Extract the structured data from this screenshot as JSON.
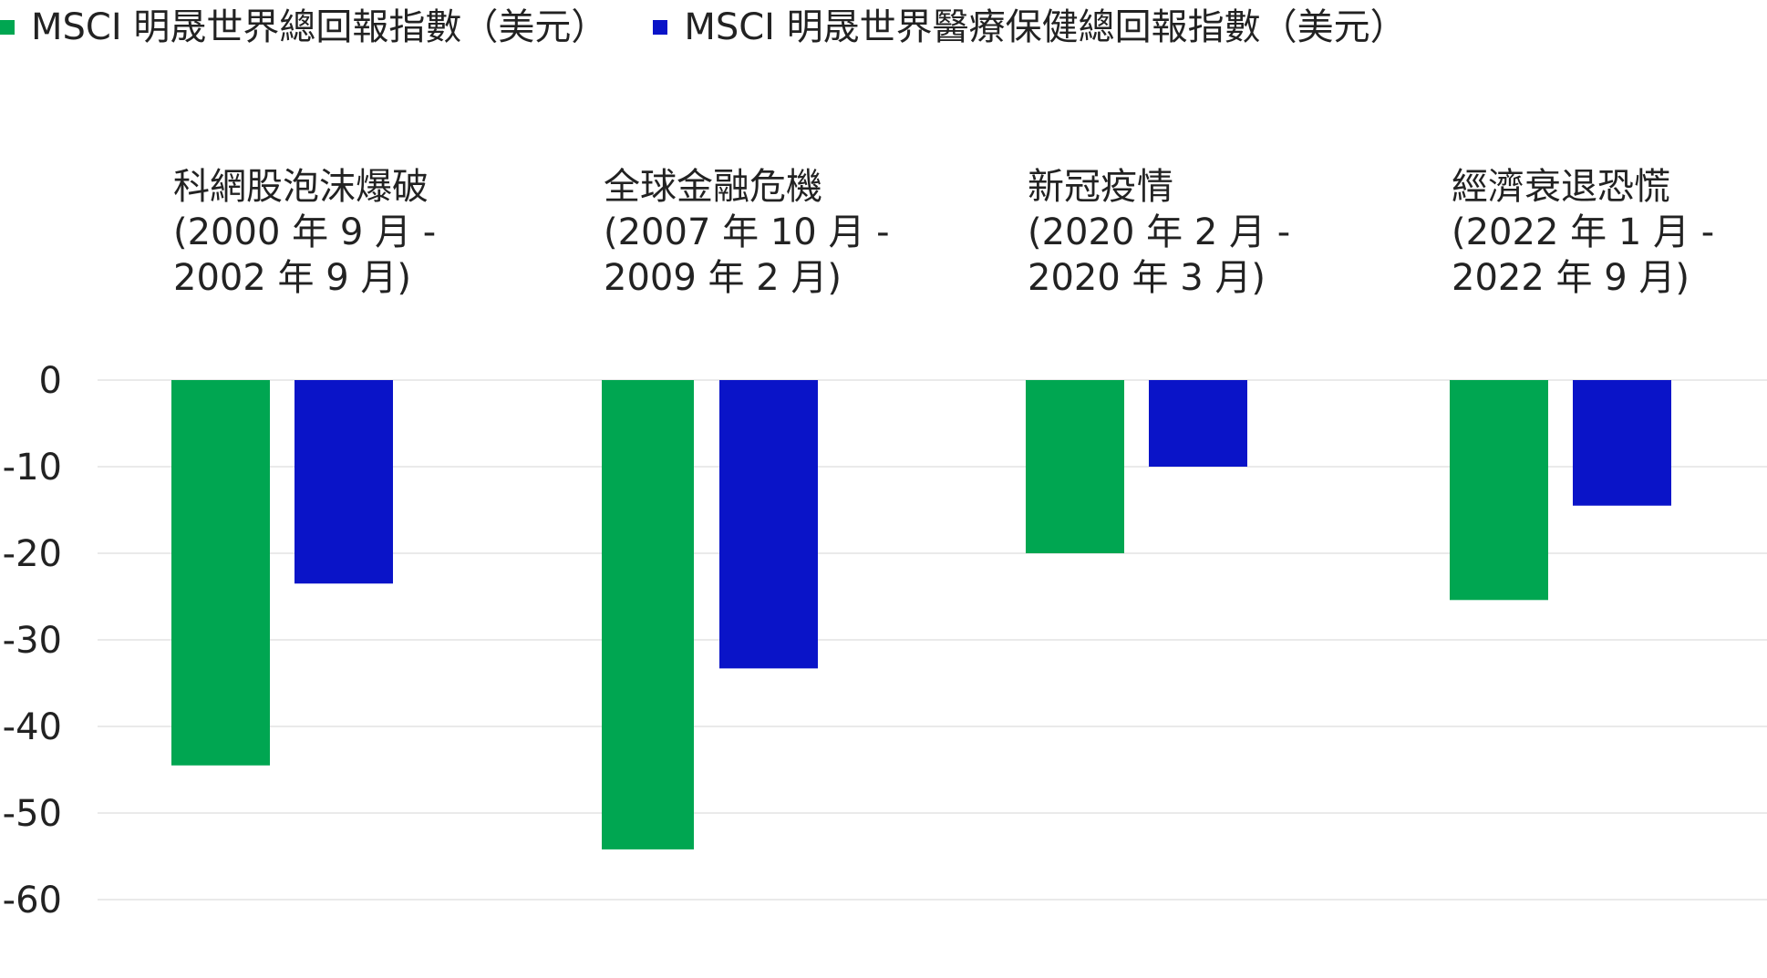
{
  "legend": [
    {
      "label": "MSCI 明晟世界總回報指數（美元）",
      "color": "#00a651"
    },
    {
      "label": "MSCI 明晟世界醫療保健總回報指數（美元）",
      "color": "#0a14c8"
    }
  ],
  "chart_data": {
    "type": "bar",
    "categories": [
      [
        "科網股泡沫爆破",
        "(2000 年 9 月 -",
        "2002 年 9 月)"
      ],
      [
        "全球金融危機",
        "(2007 年 10 月 -",
        "2009 年 2 月)"
      ],
      [
        "新冠疫情",
        "(2020 年 2 月 -",
        "2020 年 3 月)"
      ],
      [
        "經濟衰退恐慌",
        "(2022 年 1 月 -",
        "2022 年 9 月)"
      ]
    ],
    "series": [
      {
        "name": "MSCI 明晟世界總回報指數（美元）",
        "color": "#00a651",
        "values": [
          -44.5,
          -54.2,
          -20.0,
          -25.4
        ]
      },
      {
        "name": "MSCI 明晟世界醫療保健總回報指數（美元）",
        "color": "#0a14c8",
        "values": [
          -23.5,
          -33.3,
          -10.0,
          -14.5
        ]
      }
    ],
    "ylim": [
      -60,
      0
    ],
    "yticks": [
      "0",
      "-10",
      "-20",
      "-30",
      "-40",
      "-50",
      "-60"
    ],
    "grid": true,
    "legend_position": "top-left"
  }
}
